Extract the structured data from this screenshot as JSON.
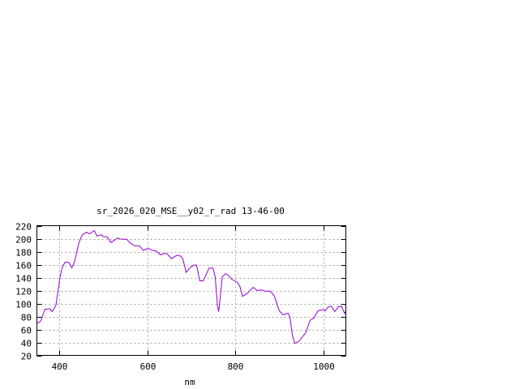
{
  "chart_data": {
    "type": "line",
    "title": "sr_2026_020_MSE__y02_r_rad 13-46-00",
    "xlabel": "nm",
    "ylabel": "",
    "xlim": [
      350,
      1050
    ],
    "ylim": [
      20,
      220
    ],
    "xticks": [
      400,
      600,
      800,
      1000
    ],
    "yticks": [
      20,
      40,
      60,
      80,
      100,
      120,
      140,
      160,
      180,
      200,
      220
    ],
    "grid": true,
    "line_color": "#9400d3",
    "series": [
      {
        "x": [
          350,
          359,
          368,
          379,
          385,
          393,
          402,
          407,
          414,
          423,
          429,
          435,
          445,
          452,
          462,
          469,
          480,
          486,
          496,
          501,
          509,
          518,
          533,
          542,
          554,
          560,
          571,
          582,
          591,
          602,
          612,
          620,
          630,
          640,
          646,
          655,
          667,
          676,
          681,
          688,
          698,
          707,
          712,
          719,
          727,
          740,
          749,
          754,
          759,
          762,
          766,
          770,
          777,
          783,
          792,
          804,
          810,
          816,
          828,
          840,
          849,
          858,
          867,
          879,
          888,
          899,
          908,
          919,
          923,
          929,
          934,
          944,
          959,
          969,
          978,
          987,
          1000,
          1003,
          1009,
          1017,
          1025,
          1033,
          1040,
          1047,
          1050
        ],
        "y": [
          69,
          73,
          91,
          92,
          87.5,
          97,
          139,
          155,
          164,
          163,
          155,
          164,
          193,
          205,
          210,
          207.5,
          212.5,
          204,
          206,
          203,
          203,
          194,
          201,
          199,
          199,
          194,
          189,
          189,
          182,
          185,
          182,
          181,
          175,
          177.5,
          176,
          169,
          174.5,
          173,
          168,
          148,
          156,
          159.5,
          159,
          135,
          135,
          154.5,
          154.5,
          141,
          97,
          87.5,
          114,
          141,
          146,
          144,
          137,
          133,
          126,
          111,
          116.5,
          125,
          120,
          121,
          119,
          119,
          111.5,
          89,
          82.5,
          85,
          80,
          51,
          38.5,
          42,
          55,
          74,
          78,
          88.7,
          90.8,
          88.7,
          94,
          96,
          87.5,
          95,
          96,
          84.5,
          88.7
        ]
      }
    ]
  }
}
